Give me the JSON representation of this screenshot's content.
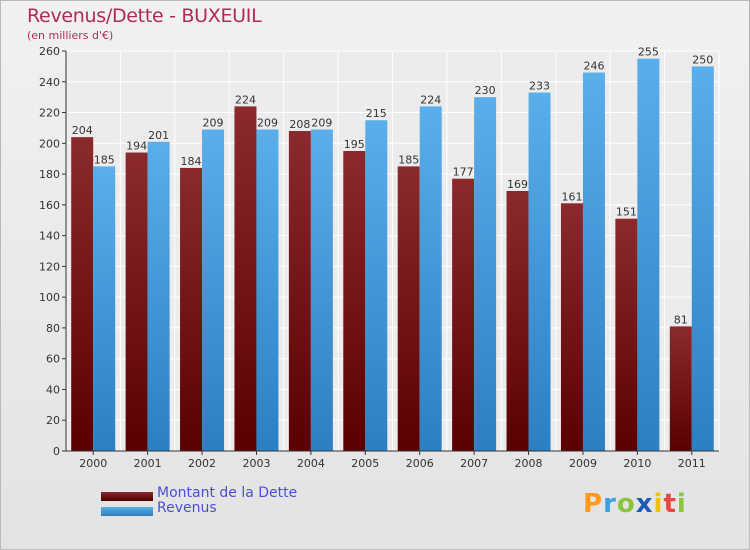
{
  "header": {
    "title": "Revenus/Dette - BUXEUIL",
    "subtitle": "(en milliers d'€)"
  },
  "legend": {
    "items": [
      {
        "label": "Montant de la Dette",
        "color": "#6a0d0f"
      },
      {
        "label": "Revenus",
        "color": "#4aa3e6"
      }
    ]
  },
  "logo": {
    "letters": [
      "P",
      "r",
      "o",
      "x",
      "i",
      "t",
      "i"
    ],
    "colors": [
      "#ff9a1a",
      "#3aa0e0",
      "#8bc53f",
      "#1e5bb5",
      "#f2c200",
      "#e8453c",
      "#8bc53f"
    ]
  },
  "chart_data": {
    "type": "bar",
    "categories": [
      "2000",
      "2001",
      "2002",
      "2003",
      "2004",
      "2005",
      "2006",
      "2007",
      "2008",
      "2009",
      "2010",
      "2011"
    ],
    "series": [
      {
        "name": "Montant de la Dette",
        "values": [
          204,
          194,
          184,
          224,
          208,
          195,
          185,
          177,
          169,
          161,
          151,
          81
        ],
        "color": "#7a1518"
      },
      {
        "name": "Revenus",
        "values": [
          185,
          201,
          209,
          209,
          209,
          215,
          224,
          230,
          233,
          246,
          255,
          250
        ],
        "color": "#4aa3e6"
      }
    ],
    "ylim": [
      0,
      260
    ],
    "yticks": [
      0,
      20,
      40,
      60,
      80,
      100,
      120,
      140,
      160,
      180,
      200,
      220,
      240,
      260
    ],
    "grid": true
  }
}
